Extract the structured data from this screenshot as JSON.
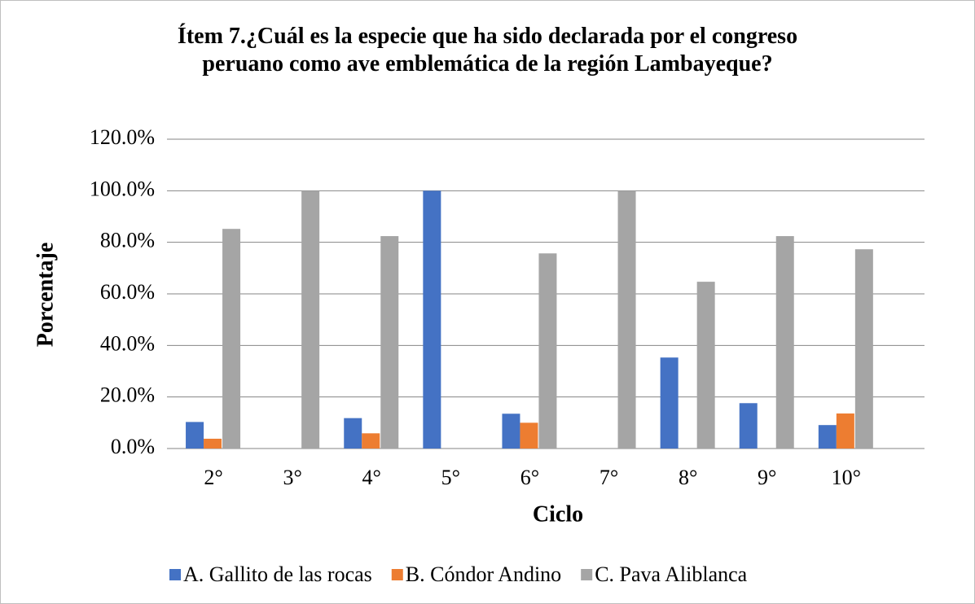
{
  "chart_data": {
    "type": "bar",
    "title": "Ítem 7.¿Cuál es la especie que ha sido declarada por el congreso peruano como ave emblemática de la región Lambayeque?",
    "x_label": "Ciclo",
    "y_label": "Porcentaje",
    "categories": [
      "2°",
      "3°",
      "4°",
      "5°",
      "6°",
      "7°",
      "8°",
      "9°",
      "10°"
    ],
    "series": [
      {
        "name": "A. Gallito de las rocas",
        "color": "#4472c4",
        "values": [
          10.3,
          0,
          11.8,
          100,
          13.5,
          0,
          35.3,
          17.6,
          9.1
        ]
      },
      {
        "name": "B. Cóndor Andino",
        "color": "#ed7d31",
        "values": [
          3.8,
          0,
          5.9,
          0,
          10,
          0,
          0,
          0,
          13.6
        ]
      },
      {
        "name": "C. Pava Aliblanca",
        "color": "#a5a5a5",
        "values": [
          85.2,
          100,
          82.4,
          0,
          75.7,
          100,
          64.7,
          82.4,
          77.3
        ]
      }
    ],
    "ylim": [
      0,
      120
    ],
    "yticks": [
      {
        "value": 0,
        "label": "0.0%"
      },
      {
        "value": 20,
        "label": "20.0%"
      },
      {
        "value": 40,
        "label": "40.0%"
      },
      {
        "value": 60,
        "label": "60.0%"
      },
      {
        "value": 80,
        "label": "80.0%"
      },
      {
        "value": 100,
        "label": "100.0%"
      },
      {
        "value": 120,
        "label": "120.0%"
      }
    ],
    "grid": true,
    "legend": "bottom"
  }
}
